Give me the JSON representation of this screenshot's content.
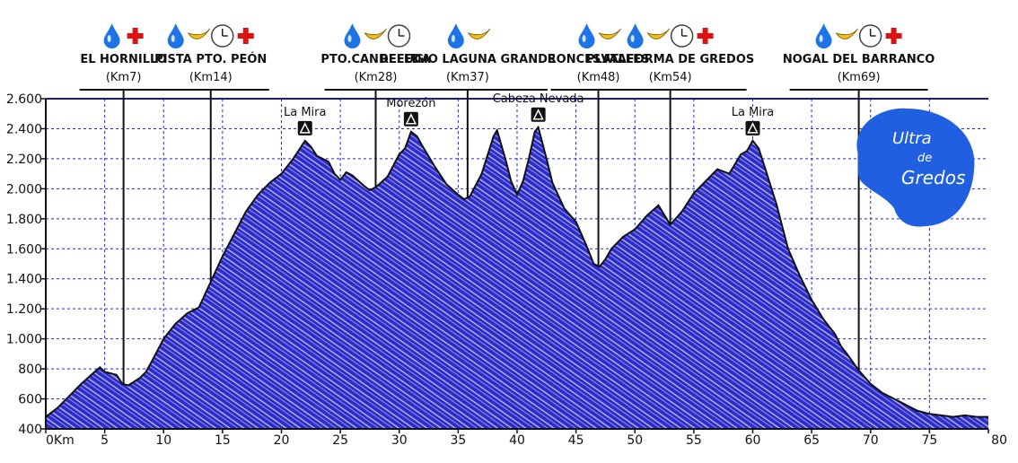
{
  "chart_data": {
    "type": "area",
    "xlabel_unit": "Km",
    "x_ticks": [
      {
        "value": 0,
        "label": "0Km"
      },
      {
        "value": 5,
        "label": "5"
      },
      {
        "value": 10,
        "label": "10"
      },
      {
        "value": 15,
        "label": "15"
      },
      {
        "value": 20,
        "label": "20"
      },
      {
        "value": 25,
        "label": "25"
      },
      {
        "value": 30,
        "label": "30"
      },
      {
        "value": 35,
        "label": "35"
      },
      {
        "value": 40,
        "label": "40"
      },
      {
        "value": 45,
        "label": "45"
      },
      {
        "value": 50,
        "label": "50"
      },
      {
        "value": 55,
        "label": "55"
      },
      {
        "value": 60,
        "label": "60"
      },
      {
        "value": 65,
        "label": "65"
      },
      {
        "value": 70,
        "label": "70"
      },
      {
        "value": 75,
        "label": "75"
      },
      {
        "value": 80,
        "label": "80"
      }
    ],
    "y_ticks": [
      {
        "value": 400,
        "label": "400"
      },
      {
        "value": 600,
        "label": "600"
      },
      {
        "value": 800,
        "label": "800"
      },
      {
        "value": 1000,
        "label": "1.000"
      },
      {
        "value": 1200,
        "label": "1.200"
      },
      {
        "value": 1400,
        "label": "1.400"
      },
      {
        "value": 1600,
        "label": "1.600"
      },
      {
        "value": 1800,
        "label": "1.800"
      },
      {
        "value": 2000,
        "label": "2.000"
      },
      {
        "value": 2200,
        "label": "2.200"
      },
      {
        "value": 2400,
        "label": "2.400"
      },
      {
        "value": 2600,
        "label": "2.600"
      }
    ],
    "xlim": [
      0,
      80
    ],
    "ylim": [
      400,
      2600
    ],
    "grid": true,
    "profile": [
      [
        0,
        480
      ],
      [
        1,
        540
      ],
      [
        2,
        620
      ],
      [
        3,
        700
      ],
      [
        4,
        770
      ],
      [
        4.6,
        810
      ],
      [
        5,
        780
      ],
      [
        6,
        760
      ],
      [
        6.5,
        700
      ],
      [
        7,
        690
      ],
      [
        8,
        740
      ],
      [
        8.5,
        780
      ],
      [
        9,
        850
      ],
      [
        10,
        1000
      ],
      [
        11,
        1100
      ],
      [
        12,
        1170
      ],
      [
        13,
        1210
      ],
      [
        14,
        1380
      ],
      [
        15,
        1550
      ],
      [
        16,
        1700
      ],
      [
        17,
        1850
      ],
      [
        18,
        1960
      ],
      [
        19,
        2040
      ],
      [
        20,
        2100
      ],
      [
        20.5,
        2150
      ],
      [
        21,
        2200
      ],
      [
        21.5,
        2260
      ],
      [
        22,
        2320
      ],
      [
        22.5,
        2280
      ],
      [
        23,
        2220
      ],
      [
        24,
        2180
      ],
      [
        24.5,
        2100
      ],
      [
        25,
        2060
      ],
      [
        25.5,
        2110
      ],
      [
        26,
        2090
      ],
      [
        27,
        2020
      ],
      [
        27.5,
        1990
      ],
      [
        28,
        2010
      ],
      [
        29,
        2080
      ],
      [
        30,
        2230
      ],
      [
        30.5,
        2270
      ],
      [
        31,
        2380
      ],
      [
        31.5,
        2350
      ],
      [
        32,
        2280
      ],
      [
        33,
        2150
      ],
      [
        34,
        2030
      ],
      [
        35,
        1960
      ],
      [
        35.5,
        1930
      ],
      [
        36,
        1950
      ],
      [
        37,
        2100
      ],
      [
        38,
        2350
      ],
      [
        38.3,
        2390
      ],
      [
        39,
        2200
      ],
      [
        39.5,
        2050
      ],
      [
        40,
        1960
      ],
      [
        40.5,
        2050
      ],
      [
        41,
        2200
      ],
      [
        41.5,
        2380
      ],
      [
        41.8,
        2410
      ],
      [
        42.5,
        2200
      ],
      [
        43,
        2040
      ],
      [
        44,
        1870
      ],
      [
        45,
        1780
      ],
      [
        46,
        1600
      ],
      [
        46.5,
        1500
      ],
      [
        47,
        1480
      ],
      [
        47.5,
        1530
      ],
      [
        48,
        1600
      ],
      [
        49,
        1680
      ],
      [
        50,
        1730
      ],
      [
        51,
        1820
      ],
      [
        52,
        1890
      ],
      [
        53,
        1760
      ],
      [
        54,
        1850
      ],
      [
        55,
        1970
      ],
      [
        56,
        2050
      ],
      [
        57,
        2130
      ],
      [
        58,
        2100
      ],
      [
        59,
        2230
      ],
      [
        59.5,
        2250
      ],
      [
        60,
        2320
      ],
      [
        60.5,
        2270
      ],
      [
        61,
        2150
      ],
      [
        62,
        1900
      ],
      [
        63,
        1600
      ],
      [
        64,
        1420
      ],
      [
        65,
        1260
      ],
      [
        66,
        1130
      ],
      [
        67,
        1030
      ],
      [
        67.5,
        950
      ],
      [
        68,
        900
      ],
      [
        69,
        790
      ],
      [
        70,
        700
      ],
      [
        71,
        640
      ],
      [
        72,
        600
      ],
      [
        73,
        560
      ],
      [
        74,
        520
      ],
      [
        75,
        500
      ],
      [
        76,
        490
      ],
      [
        77,
        480
      ],
      [
        78,
        490
      ],
      [
        79,
        480
      ],
      [
        80,
        480
      ]
    ],
    "peaks": [
      {
        "name": "La Mira",
        "km": 22,
        "elevation": 2320
      },
      {
        "name": "Morezón",
        "km": 31,
        "elevation": 2380
      },
      {
        "name": "Cabeza Nevada",
        "km": 41.8,
        "elevation": 2410
      },
      {
        "name": "La Mira",
        "km": 60,
        "elevation": 2320
      }
    ],
    "stations": [
      {
        "name": "EL HORNILLO",
        "km_label": "(Km7)",
        "km": 6.6,
        "icons": [
          "water-drop",
          "first-aid-cross"
        ]
      },
      {
        "name": "PISTA PTO. PEÓN",
        "km_label": "(Km14)",
        "km": 14,
        "icons": [
          "water-drop",
          "banana",
          "clock",
          "first-aid-cross"
        ]
      },
      {
        "name": "PTO.CANDELEDA",
        "km_label": "(Km28)",
        "km": 28,
        "icons": [
          "water-drop",
          "banana",
          "clock"
        ]
      },
      {
        "name": "REFUGIO LAGUNA GRANDE",
        "km_label": "(Km37)",
        "km": 35.8,
        "icons": [
          "water-drop",
          "banana"
        ]
      },
      {
        "name": "RONCESVALLES",
        "km_label": "(Km48)",
        "km": 46.9,
        "icons": [
          "water-drop",
          "banana"
        ]
      },
      {
        "name": "PLATAFORMA DE GREDOS",
        "km_label": "(Km54)",
        "km": 53,
        "icons": [
          "water-drop",
          "banana",
          "clock",
          "first-aid-cross"
        ]
      },
      {
        "name": "NOGAL DEL BARRANCO",
        "km_label": "(Km69)",
        "km": 69,
        "icons": [
          "water-drop",
          "banana",
          "clock",
          "first-aid-cross"
        ]
      }
    ],
    "colors": {
      "fill": "#2a2ad8",
      "hatch": "#c9c9c9",
      "outline": "#111111",
      "grid": "#2020ff",
      "axis": "#111111",
      "logo": "#1f5fe0",
      "drop": "#1e73e6",
      "banana": "#f0c020",
      "cross": "#e01010"
    }
  },
  "logo": {
    "line1": "Ultra",
    "line2": "de",
    "line3": "Gredos"
  }
}
